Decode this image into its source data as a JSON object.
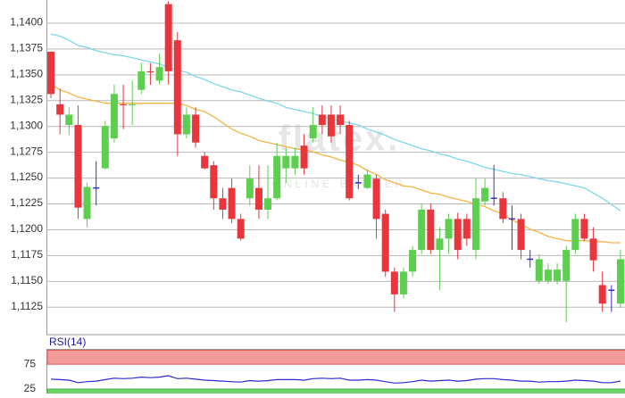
{
  "chart_data": [
    {
      "type": "candlestick",
      "ylim": [
        1.1098,
        1.1422
      ],
      "yticks": [
        {
          "value": 1.14,
          "label": "1,1400"
        },
        {
          "value": 1.1375,
          "label": "1,1375"
        },
        {
          "value": 1.135,
          "label": "1,1350"
        },
        {
          "value": 1.1325,
          "label": "1,1325"
        },
        {
          "value": 1.13,
          "label": "1,1300"
        },
        {
          "value": 1.1275,
          "label": "1,1275"
        },
        {
          "value": 1.125,
          "label": "1,1250"
        },
        {
          "value": 1.1225,
          "label": "1,1225"
        },
        {
          "value": 1.12,
          "label": "1,1200"
        },
        {
          "value": 1.1175,
          "label": "1,1175"
        },
        {
          "value": 1.115,
          "label": "1,1150"
        },
        {
          "value": 1.1125,
          "label": "1,1125"
        }
      ],
      "grid": true,
      "up_color": "#5ccf4e",
      "down_color": "#e8363c",
      "doji_color": "#3a2fc0",
      "watermark": {
        "brand": "flatex.",
        "tagline": "ONLINE BROKER"
      },
      "open": [
        1.1372,
        1.1321,
        1.1301,
        1.1301,
        1.121,
        1.124,
        1.1259,
        1.1288,
        1.1321,
        1.132,
        1.1335,
        1.1353,
        1.1344,
        1.1418,
        1.1383,
        1.1292,
        1.1311,
        1.1271,
        1.1262,
        1.123,
        1.124,
        1.121,
        1.123,
        1.124,
        1.1219,
        1.123,
        1.1259,
        1.1259,
        1.1281,
        1.1288,
        1.1311,
        1.1311,
        1.1311,
        1.1301,
        1.1245,
        1.124,
        1.1249,
        1.1215,
        1.1159,
        1.1137,
        1.1159,
        1.118,
        1.1219,
        1.118,
        1.1191,
        1.121,
        1.121,
        1.118,
        1.1227,
        1.123,
        1.123,
        1.121,
        1.121,
        1.1171,
        1.115,
        1.115,
        1.115,
        1.115,
        1.118,
        1.121,
        1.1191,
        1.1146,
        1.1141,
        1.1128
      ],
      "high": [
        1.1372,
        1.1336,
        1.1318,
        1.132,
        1.1245,
        1.1266,
        1.1305,
        1.134,
        1.134,
        1.1344,
        1.1361,
        1.1361,
        1.137,
        1.1421,
        1.1391,
        1.1318,
        1.1318,
        1.1275,
        1.1266,
        1.124,
        1.1249,
        1.1215,
        1.1262,
        1.1262,
        1.1262,
        1.1284,
        1.1279,
        1.1279,
        1.1292,
        1.1318,
        1.132,
        1.132,
        1.132,
        1.1305,
        1.1253,
        1.1258,
        1.1253,
        1.1219,
        1.1163,
        1.1163,
        1.1184,
        1.1225,
        1.1225,
        1.1202,
        1.1215,
        1.1216,
        1.1215,
        1.1249,
        1.1249,
        1.1262,
        1.1236,
        1.1223,
        1.1215,
        1.118,
        1.1176,
        1.1167,
        1.1167,
        1.1184,
        1.1215,
        1.1215,
        1.1202,
        1.1159,
        1.1146,
        1.118
      ],
      "low": [
        1.1327,
        1.1292,
        1.1291,
        1.121,
        1.1202,
        1.1223,
        1.1258,
        1.1284,
        1.1297,
        1.1301,
        1.1331,
        1.134,
        1.134,
        1.134,
        1.1271,
        1.1288,
        1.1279,
        1.1258,
        1.1219,
        1.121,
        1.1206,
        1.1189,
        1.1223,
        1.121,
        1.121,
        1.1228,
        1.1245,
        1.1253,
        1.1253,
        1.1284,
        1.1292,
        1.1284,
        1.1292,
        1.1228,
        1.1239,
        1.1239,
        1.1191,
        1.1154,
        1.112,
        1.1133,
        1.1154,
        1.1176,
        1.1176,
        1.1141,
        1.1176,
        1.1171,
        1.1184,
        1.1171,
        1.1223,
        1.1223,
        1.1206,
        1.118,
        1.1171,
        1.1163,
        1.1147,
        1.1147,
        1.1147,
        1.111,
        1.1176,
        1.1189,
        1.1159,
        1.112,
        1.112,
        1.1124
      ],
      "close": [
        1.1331,
        1.1311,
        1.1311,
        1.1221,
        1.1241,
        1.124,
        1.13,
        1.1331,
        1.132,
        1.1321,
        1.1353,
        1.1352,
        1.1357,
        1.1353,
        1.1292,
        1.1311,
        1.1284,
        1.1259,
        1.123,
        1.1219,
        1.121,
        1.1191,
        1.1249,
        1.1219,
        1.123,
        1.1271,
        1.1271,
        1.1271,
        1.1259,
        1.1301,
        1.1301,
        1.129,
        1.1301,
        1.123,
        1.1245,
        1.1253,
        1.121,
        1.1159,
        1.1137,
        1.1159,
        1.118,
        1.1219,
        1.118,
        1.1191,
        1.121,
        1.118,
        1.1191,
        1.123,
        1.124,
        1.123,
        1.121,
        1.121,
        1.118,
        1.1171,
        1.1171,
        1.1161,
        1.1161,
        1.118,
        1.121,
        1.1191,
        1.117,
        1.1128,
        1.1141,
        1.1171
      ],
      "lines": [
        {
          "color": "#7fd6ec",
          "values": [
            1.1389,
            1.1387,
            1.1383,
            1.1378,
            1.1376,
            1.1373,
            1.1371,
            1.1369,
            1.1368,
            1.1366,
            1.1364,
            1.1362,
            1.136,
            1.1357,
            1.1354,
            1.1352,
            1.1348,
            1.1345,
            1.1341,
            1.1338,
            1.1335,
            1.1333,
            1.133,
            1.1327,
            1.1324,
            1.1322,
            1.1318,
            1.1316,
            1.1314,
            1.1312,
            1.1309,
            1.1307,
            1.1305,
            1.1303,
            1.1301,
            1.1297,
            1.1294,
            1.1291,
            1.1287,
            1.1284,
            1.1281,
            1.1278,
            1.1276,
            1.1273,
            1.1271,
            1.1268,
            1.1266,
            1.1263,
            1.126,
            1.1258,
            1.1256,
            1.1254,
            1.1253,
            1.1251,
            1.1249,
            1.1247,
            1.1246,
            1.1244,
            1.1242,
            1.124,
            1.1235,
            1.123,
            1.1224,
            1.1218
          ]
        },
        {
          "color": "#f2b544",
          "values": [
            1.134,
            1.1335,
            1.1332,
            1.1328,
            1.1326,
            1.1324,
            1.1322,
            1.1322,
            1.1322,
            1.1322,
            1.1322,
            1.1322,
            1.1322,
            1.1322,
            1.1322,
            1.132,
            1.1316,
            1.1314,
            1.1309,
            1.1303,
            1.1297,
            1.1293,
            1.129,
            1.1286,
            1.1284,
            1.1282,
            1.128,
            1.1278,
            1.1277,
            1.1275,
            1.1272,
            1.127,
            1.1267,
            1.1265,
            1.1262,
            1.1257,
            1.1253,
            1.1248,
            1.1245,
            1.1242,
            1.1241,
            1.1238,
            1.1235,
            1.1234,
            1.1231,
            1.1229,
            1.1227,
            1.1224,
            1.1222,
            1.1218,
            1.1215,
            1.1209,
            1.1205,
            1.12,
            1.1197,
            1.1193,
            1.1191,
            1.1189,
            1.1189,
            1.1189,
            1.1188,
            1.1188,
            1.1187,
            1.1187
          ]
        }
      ]
    },
    {
      "type": "line",
      "title": "RSI(14)",
      "ylim": [
        16,
        105
      ],
      "yticks": [
        75,
        25
      ],
      "color": "#2b2bd0",
      "overbought_color": "#f39a9a",
      "oversold_color": "#6fd56a",
      "values": [
        45,
        44,
        43,
        38,
        40,
        41,
        44,
        47,
        46,
        47,
        49,
        48,
        49,
        52,
        46,
        47,
        45,
        43,
        42,
        41,
        40,
        39,
        42,
        41,
        42,
        44,
        44,
        44,
        43,
        46,
        47,
        46,
        47,
        43,
        43,
        44,
        43,
        40,
        37,
        38,
        40,
        43,
        41,
        42,
        43,
        41,
        42,
        45,
        46,
        46,
        44,
        43,
        41,
        41,
        39,
        40,
        40,
        41,
        43,
        42,
        41,
        38,
        38,
        41
      ]
    }
  ]
}
